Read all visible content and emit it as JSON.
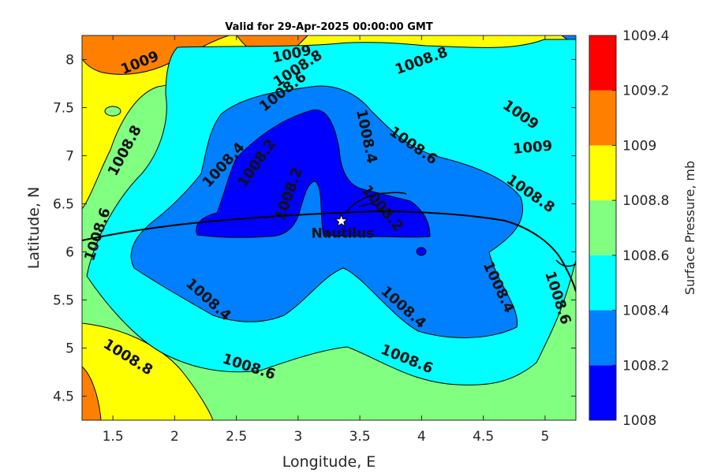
{
  "title": "Valid for 29-Apr-2025 00:00:00 GMT",
  "axes": {
    "xlabel": "Longitude, E",
    "ylabel": "Latitude, N",
    "xlim": [
      1.25,
      5.25
    ],
    "ylim": [
      4.25,
      8.25
    ],
    "xticks": [
      "1.5",
      "2",
      "2.5",
      "3",
      "3.5",
      "4",
      "4.5",
      "5"
    ],
    "yticks": [
      "4.5",
      "5",
      "5.5",
      "6",
      "6.5",
      "7",
      "7.5",
      "8"
    ]
  },
  "colorbar": {
    "label": "Surface Pressure, mb",
    "levels": [
      "1008",
      "1008.2",
      "1008.4",
      "1008.6",
      "1008.8",
      "1009",
      "1009.2",
      "1009.4"
    ],
    "colors": [
      "#0000ff",
      "#0080ff",
      "#00ffff",
      "#80ff80",
      "#ffff00",
      "#ff8000",
      "#ff0000",
      "#800000"
    ]
  },
  "contour_labels": [
    {
      "text": "1009",
      "lon": 1.72,
      "lat": 7.96,
      "angle": -22
    },
    {
      "text": "1009",
      "lon": 2.95,
      "lat": 8.05,
      "angle": -12
    },
    {
      "text": "1008.8",
      "lon": 3.0,
      "lat": 7.9,
      "angle": -33
    },
    {
      "text": "1008.6",
      "lon": 2.88,
      "lat": 7.66,
      "angle": -38
    },
    {
      "text": "1008.8",
      "lon": 4.0,
      "lat": 7.98,
      "angle": -20
    },
    {
      "text": "1008.8",
      "lon": 1.6,
      "lat": 7.05,
      "angle": -62
    },
    {
      "text": "1008.4",
      "lon": 2.4,
      "lat": 6.9,
      "angle": -48
    },
    {
      "text": "1008.2",
      "lon": 2.67,
      "lat": 6.92,
      "angle": -55
    },
    {
      "text": "1008.2",
      "lon": 2.93,
      "lat": 6.6,
      "angle": -70
    },
    {
      "text": "1008.4",
      "lon": 3.55,
      "lat": 7.2,
      "angle": 78
    },
    {
      "text": "1008.2",
      "lon": 3.68,
      "lat": 6.45,
      "angle": 50
    },
    {
      "text": "1008.6",
      "lon": 3.93,
      "lat": 7.1,
      "angle": 35
    },
    {
      "text": "1009",
      "lon": 4.8,
      "lat": 7.42,
      "angle": 35
    },
    {
      "text": "1009",
      "lon": 4.9,
      "lat": 7.08,
      "angle": -5
    },
    {
      "text": "1008.8",
      "lon": 4.88,
      "lat": 6.6,
      "angle": 35
    },
    {
      "text": "1008.6",
      "lon": 1.38,
      "lat": 6.18,
      "angle": -72
    },
    {
      "text": "1008.6",
      "lon": 5.1,
      "lat": 5.52,
      "angle": 72
    },
    {
      "text": "1008.4",
      "lon": 2.27,
      "lat": 5.5,
      "angle": 42
    },
    {
      "text": "1008.4",
      "lon": 3.85,
      "lat": 5.42,
      "angle": 42
    },
    {
      "text": "1008.4",
      "lon": 4.62,
      "lat": 5.63,
      "angle": 65
    },
    {
      "text": "1008.8",
      "lon": 1.62,
      "lat": 4.9,
      "angle": 32
    },
    {
      "text": "1008.6",
      "lon": 2.6,
      "lat": 4.8,
      "angle": 18
    },
    {
      "text": "1008.6",
      "lon": 3.88,
      "lat": 4.88,
      "angle": 22
    }
  ],
  "station": {
    "name": "Nautilus",
    "lon": 3.35,
    "lat": 6.32,
    "marker": "star-icon"
  }
}
